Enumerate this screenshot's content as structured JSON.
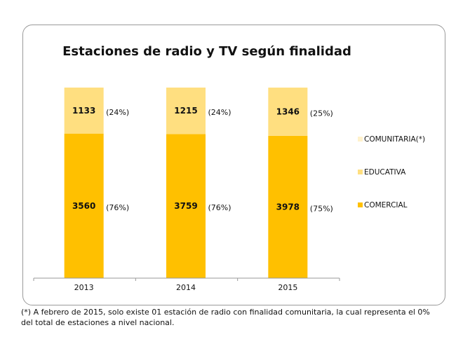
{
  "chart_data": {
    "type": "bar",
    "stacked": "percent",
    "title": "Estaciones de radio y TV según finalidad",
    "categories": [
      "2013",
      "2014",
      "2015"
    ],
    "series": [
      {
        "name": "COMERCIAL",
        "color": "#FFC000",
        "values": [
          3560,
          3759,
          3978
        ],
        "percent_labels": [
          "(76%)",
          "(76%)",
          "(75%)"
        ]
      },
      {
        "name": "EDUCATIVA",
        "color": "#FFDF80",
        "values": [
          1133,
          1215,
          1346
        ],
        "percent_labels": [
          "(24%)",
          "(24%)",
          "(25%)"
        ]
      },
      {
        "name": "COMUNITARIA(*)",
        "color": "#FFF2CC",
        "values": [
          0,
          0,
          1
        ],
        "percent_labels": []
      }
    ],
    "legend_order": [
      "COMUNITARIA(*)",
      "EDUCATIVA",
      "COMERCIAL"
    ],
    "legend_position": "right",
    "xlabel": "",
    "ylabel": "",
    "grid": false
  },
  "footnote": "(*) A febrero de 2015, solo existe 01 estación de radio con finalidad comunitaria, la cual representa el 0% del total de estaciones a nivel nacional."
}
